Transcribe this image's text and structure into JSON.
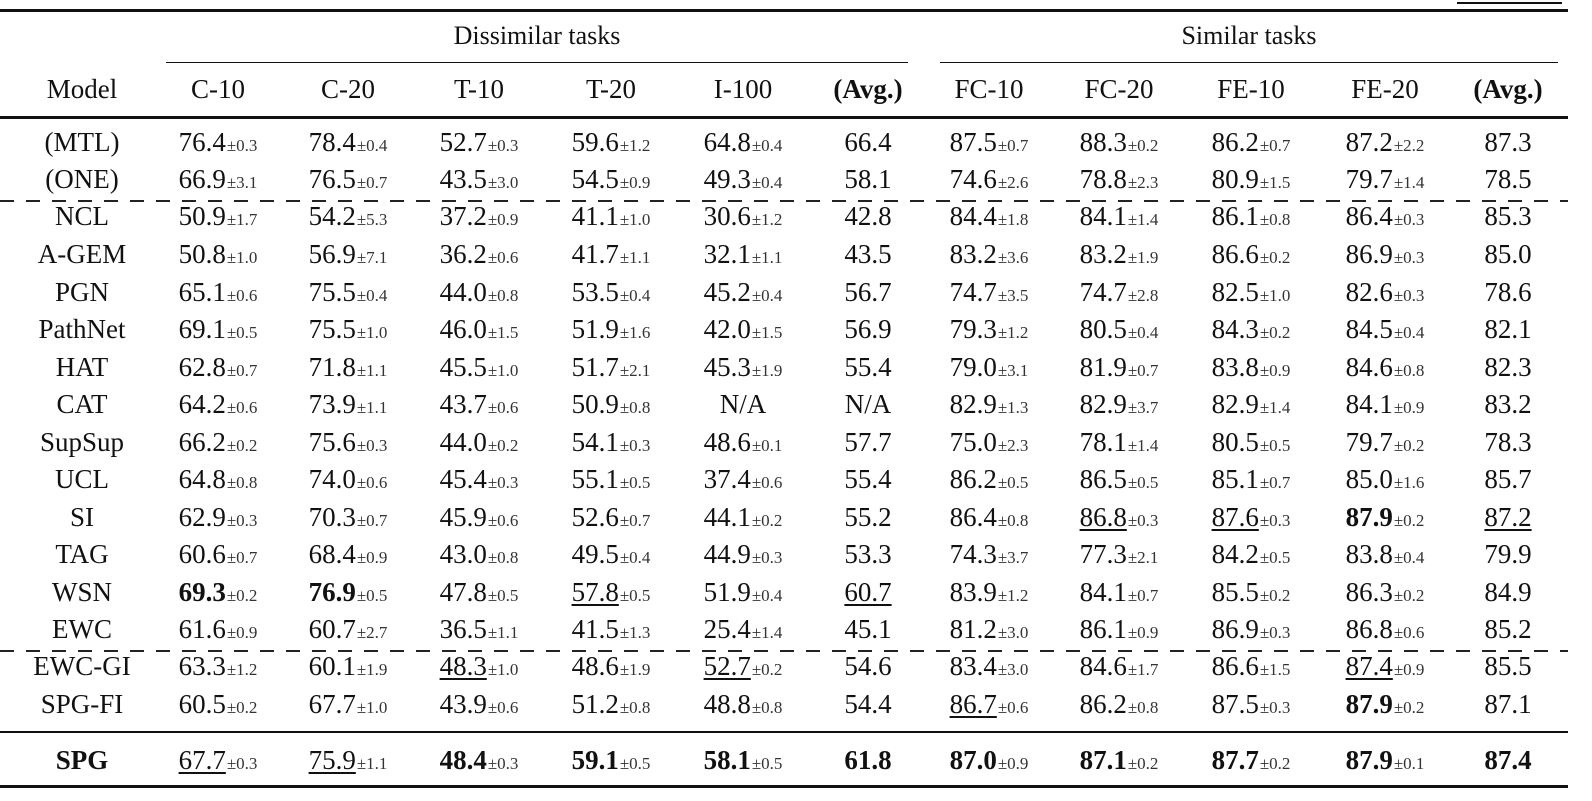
{
  "table": {
    "group_headers": {
      "dissimilar": "Dissimilar tasks",
      "similar": "Similar tasks"
    },
    "columns": [
      "Model",
      "C-10",
      "C-20",
      "T-10",
      "T-20",
      "I-100",
      "(Avg.)",
      "FC-10",
      "FC-20",
      "FE-10",
      "FE-20",
      "(Avg.)"
    ],
    "rows": [
      {
        "model": "(MTL)",
        "cells": [
          {
            "v": "76.4",
            "s": "±0.3"
          },
          {
            "v": "78.4",
            "s": "±0.4"
          },
          {
            "v": "52.7",
            "s": "±0.3"
          },
          {
            "v": "59.6",
            "s": "±1.2"
          },
          {
            "v": "64.8",
            "s": "±0.4"
          },
          {
            "v": "66.4",
            "s": ""
          },
          {
            "v": "87.5",
            "s": "±0.7"
          },
          {
            "v": "88.3",
            "s": "±0.2"
          },
          {
            "v": "86.2",
            "s": "±0.7"
          },
          {
            "v": "87.2",
            "s": "±2.2"
          },
          {
            "v": "87.3",
            "s": ""
          }
        ]
      },
      {
        "model": "(ONE)",
        "cells": [
          {
            "v": "66.9",
            "s": "±3.1"
          },
          {
            "v": "76.5",
            "s": "±0.7"
          },
          {
            "v": "43.5",
            "s": "±3.0"
          },
          {
            "v": "54.5",
            "s": "±0.9"
          },
          {
            "v": "49.3",
            "s": "±0.4"
          },
          {
            "v": "58.1",
            "s": ""
          },
          {
            "v": "74.6",
            "s": "±2.6"
          },
          {
            "v": "78.8",
            "s": "±2.3"
          },
          {
            "v": "80.9",
            "s": "±1.5"
          },
          {
            "v": "79.7",
            "s": "±1.4"
          },
          {
            "v": "78.5",
            "s": ""
          }
        ]
      },
      {
        "model": "NCL",
        "cells": [
          {
            "v": "50.9",
            "s": "±1.7"
          },
          {
            "v": "54.2",
            "s": "±5.3"
          },
          {
            "v": "37.2",
            "s": "±0.9"
          },
          {
            "v": "41.1",
            "s": "±1.0"
          },
          {
            "v": "30.6",
            "s": "±1.2"
          },
          {
            "v": "42.8",
            "s": ""
          },
          {
            "v": "84.4",
            "s": "±1.8"
          },
          {
            "v": "84.1",
            "s": "±1.4"
          },
          {
            "v": "86.1",
            "s": "±0.8"
          },
          {
            "v": "86.4",
            "s": "±0.3"
          },
          {
            "v": "85.3",
            "s": ""
          }
        ]
      },
      {
        "model": "A-GEM",
        "cells": [
          {
            "v": "50.8",
            "s": "±1.0"
          },
          {
            "v": "56.9",
            "s": "±7.1"
          },
          {
            "v": "36.2",
            "s": "±0.6"
          },
          {
            "v": "41.7",
            "s": "±1.1"
          },
          {
            "v": "32.1",
            "s": "±1.1"
          },
          {
            "v": "43.5",
            "s": ""
          },
          {
            "v": "83.2",
            "s": "±3.6"
          },
          {
            "v": "83.2",
            "s": "±1.9"
          },
          {
            "v": "86.6",
            "s": "±0.2"
          },
          {
            "v": "86.9",
            "s": "±0.3"
          },
          {
            "v": "85.0",
            "s": ""
          }
        ]
      },
      {
        "model": "PGN",
        "cells": [
          {
            "v": "65.1",
            "s": "±0.6"
          },
          {
            "v": "75.5",
            "s": "±0.4"
          },
          {
            "v": "44.0",
            "s": "±0.8"
          },
          {
            "v": "53.5",
            "s": "±0.4"
          },
          {
            "v": "45.2",
            "s": "±0.4"
          },
          {
            "v": "56.7",
            "s": ""
          },
          {
            "v": "74.7",
            "s": "±3.5"
          },
          {
            "v": "74.7",
            "s": "±2.8"
          },
          {
            "v": "82.5",
            "s": "±1.0"
          },
          {
            "v": "82.6",
            "s": "±0.3"
          },
          {
            "v": "78.6",
            "s": ""
          }
        ]
      },
      {
        "model": "PathNet",
        "cells": [
          {
            "v": "69.1",
            "s": "±0.5"
          },
          {
            "v": "75.5",
            "s": "±1.0"
          },
          {
            "v": "46.0",
            "s": "±1.5"
          },
          {
            "v": "51.9",
            "s": "±1.6"
          },
          {
            "v": "42.0",
            "s": "±1.5"
          },
          {
            "v": "56.9",
            "s": ""
          },
          {
            "v": "79.3",
            "s": "±1.2"
          },
          {
            "v": "80.5",
            "s": "±0.4"
          },
          {
            "v": "84.3",
            "s": "±0.2"
          },
          {
            "v": "84.5",
            "s": "±0.4"
          },
          {
            "v": "82.1",
            "s": ""
          }
        ]
      },
      {
        "model": "HAT",
        "cells": [
          {
            "v": "62.8",
            "s": "±0.7"
          },
          {
            "v": "71.8",
            "s": "±1.1"
          },
          {
            "v": "45.5",
            "s": "±1.0"
          },
          {
            "v": "51.7",
            "s": "±2.1"
          },
          {
            "v": "45.3",
            "s": "±1.9"
          },
          {
            "v": "55.4",
            "s": ""
          },
          {
            "v": "79.0",
            "s": "±3.1"
          },
          {
            "v": "81.9",
            "s": "±0.7"
          },
          {
            "v": "83.8",
            "s": "±0.9"
          },
          {
            "v": "84.6",
            "s": "±0.8"
          },
          {
            "v": "82.3",
            "s": ""
          }
        ]
      },
      {
        "model": "CAT",
        "cells": [
          {
            "v": "64.2",
            "s": "±0.6"
          },
          {
            "v": "73.9",
            "s": "±1.1"
          },
          {
            "v": "43.7",
            "s": "±0.6"
          },
          {
            "v": "50.9",
            "s": "±0.8"
          },
          {
            "v": "N/A",
            "s": ""
          },
          {
            "v": "N/A",
            "s": ""
          },
          {
            "v": "82.9",
            "s": "±1.3"
          },
          {
            "v": "82.9",
            "s": "±3.7"
          },
          {
            "v": "82.9",
            "s": "±1.4"
          },
          {
            "v": "84.1",
            "s": "±0.9"
          },
          {
            "v": "83.2",
            "s": ""
          }
        ]
      },
      {
        "model": "SupSup",
        "cells": [
          {
            "v": "66.2",
            "s": "±0.2"
          },
          {
            "v": "75.6",
            "s": "±0.3"
          },
          {
            "v": "44.0",
            "s": "±0.2"
          },
          {
            "v": "54.1",
            "s": "±0.3"
          },
          {
            "v": "48.6",
            "s": "±0.1"
          },
          {
            "v": "57.7",
            "s": ""
          },
          {
            "v": "75.0",
            "s": "±2.3"
          },
          {
            "v": "78.1",
            "s": "±1.4"
          },
          {
            "v": "80.5",
            "s": "±0.5"
          },
          {
            "v": "79.7",
            "s": "±0.2"
          },
          {
            "v": "78.3",
            "s": ""
          }
        ]
      },
      {
        "model": "UCL",
        "cells": [
          {
            "v": "64.8",
            "s": "±0.8"
          },
          {
            "v": "74.0",
            "s": "±0.6"
          },
          {
            "v": "45.4",
            "s": "±0.3"
          },
          {
            "v": "55.1",
            "s": "±0.5"
          },
          {
            "v": "37.4",
            "s": "±0.6"
          },
          {
            "v": "55.4",
            "s": ""
          },
          {
            "v": "86.2",
            "s": "±0.5"
          },
          {
            "v": "86.5",
            "s": "±0.5"
          },
          {
            "v": "85.1",
            "s": "±0.7"
          },
          {
            "v": "85.0",
            "s": "±1.6"
          },
          {
            "v": "85.7",
            "s": ""
          }
        ]
      },
      {
        "model": "SI",
        "cells": [
          {
            "v": "62.9",
            "s": "±0.3"
          },
          {
            "v": "70.3",
            "s": "±0.7"
          },
          {
            "v": "45.9",
            "s": "±0.6"
          },
          {
            "v": "52.6",
            "s": "±0.7"
          },
          {
            "v": "44.1",
            "s": "±0.2"
          },
          {
            "v": "55.2",
            "s": ""
          },
          {
            "v": "86.4",
            "s": "±0.8"
          },
          {
            "v": "86.8",
            "s": "±0.3",
            "u": true
          },
          {
            "v": "87.6",
            "s": "±0.3",
            "u": true
          },
          {
            "v": "87.9",
            "s": "±0.2",
            "b": true
          },
          {
            "v": "87.2",
            "s": "",
            "u": true
          }
        ]
      },
      {
        "model": "TAG",
        "cells": [
          {
            "v": "60.6",
            "s": "±0.7"
          },
          {
            "v": "68.4",
            "s": "±0.9"
          },
          {
            "v": "43.0",
            "s": "±0.8"
          },
          {
            "v": "49.5",
            "s": "±0.4"
          },
          {
            "v": "44.9",
            "s": "±0.3"
          },
          {
            "v": "53.3",
            "s": ""
          },
          {
            "v": "74.3",
            "s": "±3.7"
          },
          {
            "v": "77.3",
            "s": "±2.1"
          },
          {
            "v": "84.2",
            "s": "±0.5"
          },
          {
            "v": "83.8",
            "s": "±0.4"
          },
          {
            "v": "79.9",
            "s": ""
          }
        ]
      },
      {
        "model": "WSN",
        "cells": [
          {
            "v": "69.3",
            "s": "±0.2",
            "b": true
          },
          {
            "v": "76.9",
            "s": "±0.5",
            "b": true
          },
          {
            "v": "47.8",
            "s": "±0.5"
          },
          {
            "v": "57.8",
            "s": "±0.5",
            "u": true
          },
          {
            "v": "51.9",
            "s": "±0.4"
          },
          {
            "v": "60.7",
            "s": "",
            "u": true
          },
          {
            "v": "83.9",
            "s": "±1.2"
          },
          {
            "v": "84.1",
            "s": "±0.7"
          },
          {
            "v": "85.5",
            "s": "±0.2"
          },
          {
            "v": "86.3",
            "s": "±0.2"
          },
          {
            "v": "84.9",
            "s": ""
          }
        ]
      },
      {
        "model": "EWC",
        "cells": [
          {
            "v": "61.6",
            "s": "±0.9"
          },
          {
            "v": "60.7",
            "s": "±2.7"
          },
          {
            "v": "36.5",
            "s": "±1.1"
          },
          {
            "v": "41.5",
            "s": "±1.3"
          },
          {
            "v": "25.4",
            "s": "±1.4"
          },
          {
            "v": "45.1",
            "s": ""
          },
          {
            "v": "81.2",
            "s": "±3.0"
          },
          {
            "v": "86.1",
            "s": "±0.9"
          },
          {
            "v": "86.9",
            "s": "±0.3"
          },
          {
            "v": "86.8",
            "s": "±0.6"
          },
          {
            "v": "85.2",
            "s": ""
          }
        ]
      },
      {
        "model": "EWC-GI",
        "cells": [
          {
            "v": "63.3",
            "s": "±1.2"
          },
          {
            "v": "60.1",
            "s": "±1.9"
          },
          {
            "v": "48.3",
            "s": "±1.0",
            "u": true
          },
          {
            "v": "48.6",
            "s": "±1.9"
          },
          {
            "v": "52.7",
            "s": "±0.2",
            "u": true
          },
          {
            "v": "54.6",
            "s": ""
          },
          {
            "v": "83.4",
            "s": "±3.0"
          },
          {
            "v": "84.6",
            "s": "±1.7"
          },
          {
            "v": "86.6",
            "s": "±1.5"
          },
          {
            "v": "87.4",
            "s": "±0.9",
            "u": true
          },
          {
            "v": "85.5",
            "s": ""
          }
        ]
      },
      {
        "model": "SPG-FI",
        "cells": [
          {
            "v": "60.5",
            "s": "±0.2"
          },
          {
            "v": "67.7",
            "s": "±1.0"
          },
          {
            "v": "43.9",
            "s": "±0.6"
          },
          {
            "v": "51.2",
            "s": "±0.8"
          },
          {
            "v": "48.8",
            "s": "±0.8"
          },
          {
            "v": "54.4",
            "s": ""
          },
          {
            "v": "86.7",
            "s": "±0.6",
            "u": true
          },
          {
            "v": "86.2",
            "s": "±0.8"
          },
          {
            "v": "87.5",
            "s": "±0.3"
          },
          {
            "v": "87.9",
            "s": "±0.2",
            "b": true
          },
          {
            "v": "87.1",
            "s": ""
          }
        ]
      },
      {
        "model": "SPG",
        "model_bold": true,
        "cells": [
          {
            "v": "67.7",
            "s": "±0.3",
            "u": true
          },
          {
            "v": "75.9",
            "s": "±1.1",
            "u": true
          },
          {
            "v": "48.4",
            "s": "±0.3",
            "b": true
          },
          {
            "v": "59.1",
            "s": "±0.5",
            "b": true
          },
          {
            "v": "58.1",
            "s": "±0.5",
            "b": true
          },
          {
            "v": "61.8",
            "s": "",
            "b": true
          },
          {
            "v": "87.0",
            "s": "±0.9",
            "b": true
          },
          {
            "v": "87.1",
            "s": "±0.2",
            "b": true
          },
          {
            "v": "87.7",
            "s": "±0.2",
            "b": true
          },
          {
            "v": "87.9",
            "s": "±0.1",
            "b": true
          },
          {
            "v": "87.4",
            "s": "",
            "b": true
          }
        ]
      }
    ]
  }
}
